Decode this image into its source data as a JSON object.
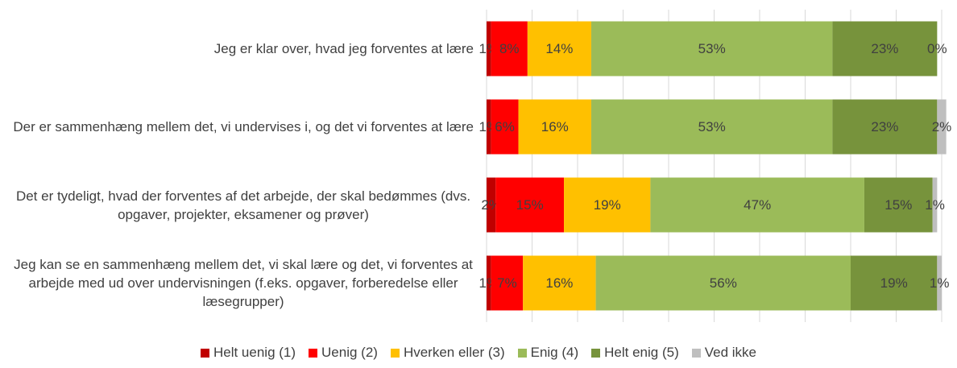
{
  "chart_data": {
    "type": "stacked-bar-horizontal",
    "categories": [
      "Jeg er klar over, hvad jeg forventes at lære",
      "Der er sammenhæng mellem det, vi undervises i, og det vi forventes at lære",
      "Det er tydeligt, hvad der forventes af det arbejde, der skal bedømmes (dvs. opgaver, projekter, eksamener og prøver)",
      "Jeg kan se en sammenhæng mellem det, vi skal lære og det, vi forventes at arbejde med ud over undervisningen (f.eks. opgaver, forberedelse eller læsegrupper)"
    ],
    "series": [
      {
        "name": "Helt uenig (1)",
        "color": "#c00000",
        "values": [
          1,
          1,
          2,
          1
        ],
        "value_labels": [
          "1%",
          "1%",
          "2%",
          "1%"
        ]
      },
      {
        "name": "Uenig (2)",
        "color": "#ff0000",
        "values": [
          8,
          6,
          15,
          7
        ],
        "value_labels": [
          "8%",
          "6%",
          "15%",
          "7%"
        ]
      },
      {
        "name": "Hverken eller (3)",
        "color": "#ffc000",
        "values": [
          14,
          16,
          19,
          16
        ],
        "value_labels": [
          "14%",
          "16%",
          "19%",
          "16%"
        ]
      },
      {
        "name": "Enig (4)",
        "color": "#9bbb59",
        "values": [
          53,
          53,
          47,
          56
        ],
        "value_labels": [
          "53%",
          "53%",
          "47%",
          "56%"
        ]
      },
      {
        "name": "Helt enig (5)",
        "color": "#77933c",
        "values": [
          23,
          23,
          15,
          19
        ],
        "value_labels": [
          "23%",
          "23%",
          "15%",
          "19%"
        ]
      },
      {
        "name": "Ved ikke",
        "color": "#bfbfbf",
        "values": [
          0,
          2,
          1,
          1
        ],
        "value_labels": [
          "0%",
          "2%",
          "1%",
          "1%"
        ]
      }
    ],
    "xlim": [
      0,
      100
    ],
    "xticks": [
      0,
      10,
      20,
      30,
      40,
      50,
      60,
      70,
      80,
      90,
      100
    ],
    "grid": true,
    "legend": "bottom"
  }
}
